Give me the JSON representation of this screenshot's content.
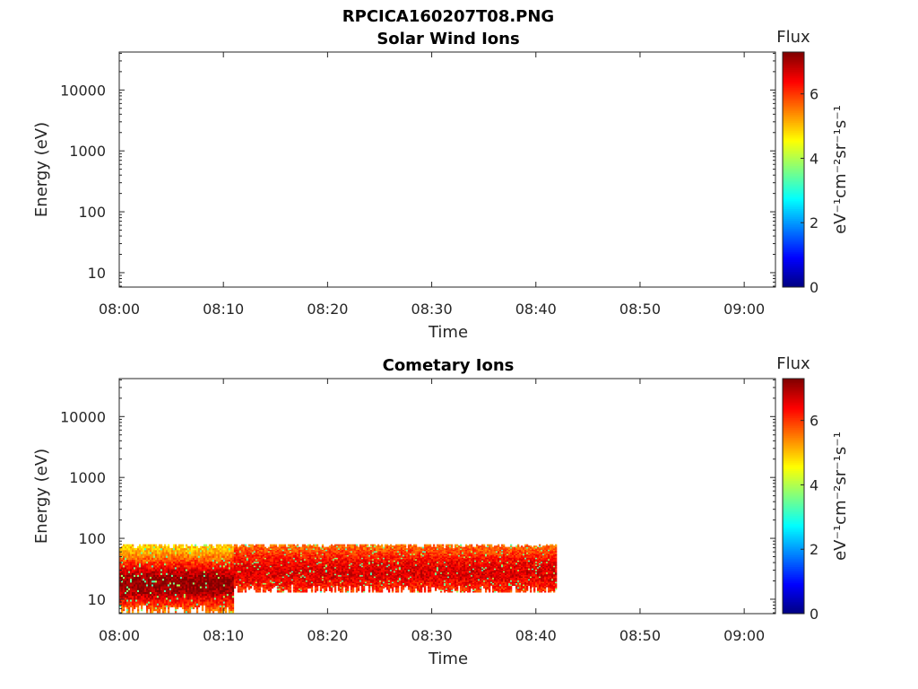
{
  "figure": {
    "title": "RPCICA160207T08.PNG"
  },
  "chart_data": [
    {
      "type": "heatmap",
      "title": "Solar Wind Ions",
      "xlabel": "Time",
      "ylabel": "Energy (eV)",
      "x_ticks": [
        "08:00",
        "08:10",
        "08:20",
        "08:30",
        "08:40",
        "08:50",
        "09:00"
      ],
      "y_ticks": [
        "10",
        "100",
        "1000",
        "10000"
      ],
      "y_scale": "log",
      "xlim": [
        "08:00",
        "09:03"
      ],
      "ylim": [
        5.8,
        42000
      ],
      "colorbar": {
        "label": "Flux",
        "units": "eV⁻¹cm⁻²sr⁻¹s⁻¹",
        "ticks": [
          "0",
          "2",
          "4",
          "6"
        ],
        "range": [
          0,
          7.3
        ],
        "colormap": "jet"
      },
      "bands": []
    },
    {
      "type": "heatmap",
      "title": "Cometary Ions",
      "xlabel": "Time",
      "ylabel": "Energy (eV)",
      "x_ticks": [
        "08:00",
        "08:10",
        "08:20",
        "08:30",
        "08:40",
        "08:50",
        "09:00"
      ],
      "y_ticks": [
        "10",
        "100",
        "1000",
        "10000"
      ],
      "y_scale": "log",
      "xlim": [
        "08:00",
        "09:03"
      ],
      "ylim": [
        5.8,
        42000
      ],
      "colorbar": {
        "label": "Flux",
        "units": "eV⁻¹cm⁻²sr⁻¹s⁻¹",
        "ticks": [
          "0",
          "2",
          "4",
          "6"
        ],
        "range": [
          0,
          7.3
        ],
        "colormap": "jet"
      },
      "bands": [
        {
          "t_start": "08:00",
          "t_end": "08:11",
          "e_min": 6,
          "e_max": 80,
          "peak_energy": 18,
          "peak_flux": 7.2,
          "edge_flux": 4.5
        },
        {
          "t_start": "08:11",
          "t_end": "08:42",
          "e_min": 13,
          "e_max": 80,
          "peak_energy": 28,
          "peak_flux": 6.6,
          "edge_flux": 5.0
        }
      ]
    }
  ]
}
